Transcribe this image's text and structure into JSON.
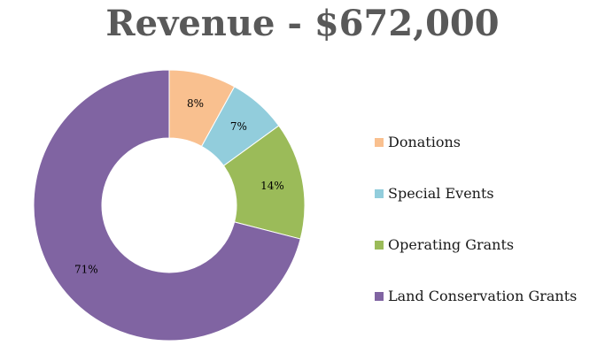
{
  "chart_data": {
    "type": "pie",
    "title": "Revenue - $672,000",
    "categories": [
      "Donations",
      "Special Events",
      "Operating Grants",
      "Land Conservation Grants"
    ],
    "values": [
      8,
      7,
      14,
      71
    ],
    "labels": [
      "8%",
      "7%",
      "14%",
      "71%"
    ],
    "colors": [
      "#F9C08F",
      "#92CDDC",
      "#9BBB59",
      "#8064A2"
    ],
    "legend_position": "right",
    "donut": true
  }
}
